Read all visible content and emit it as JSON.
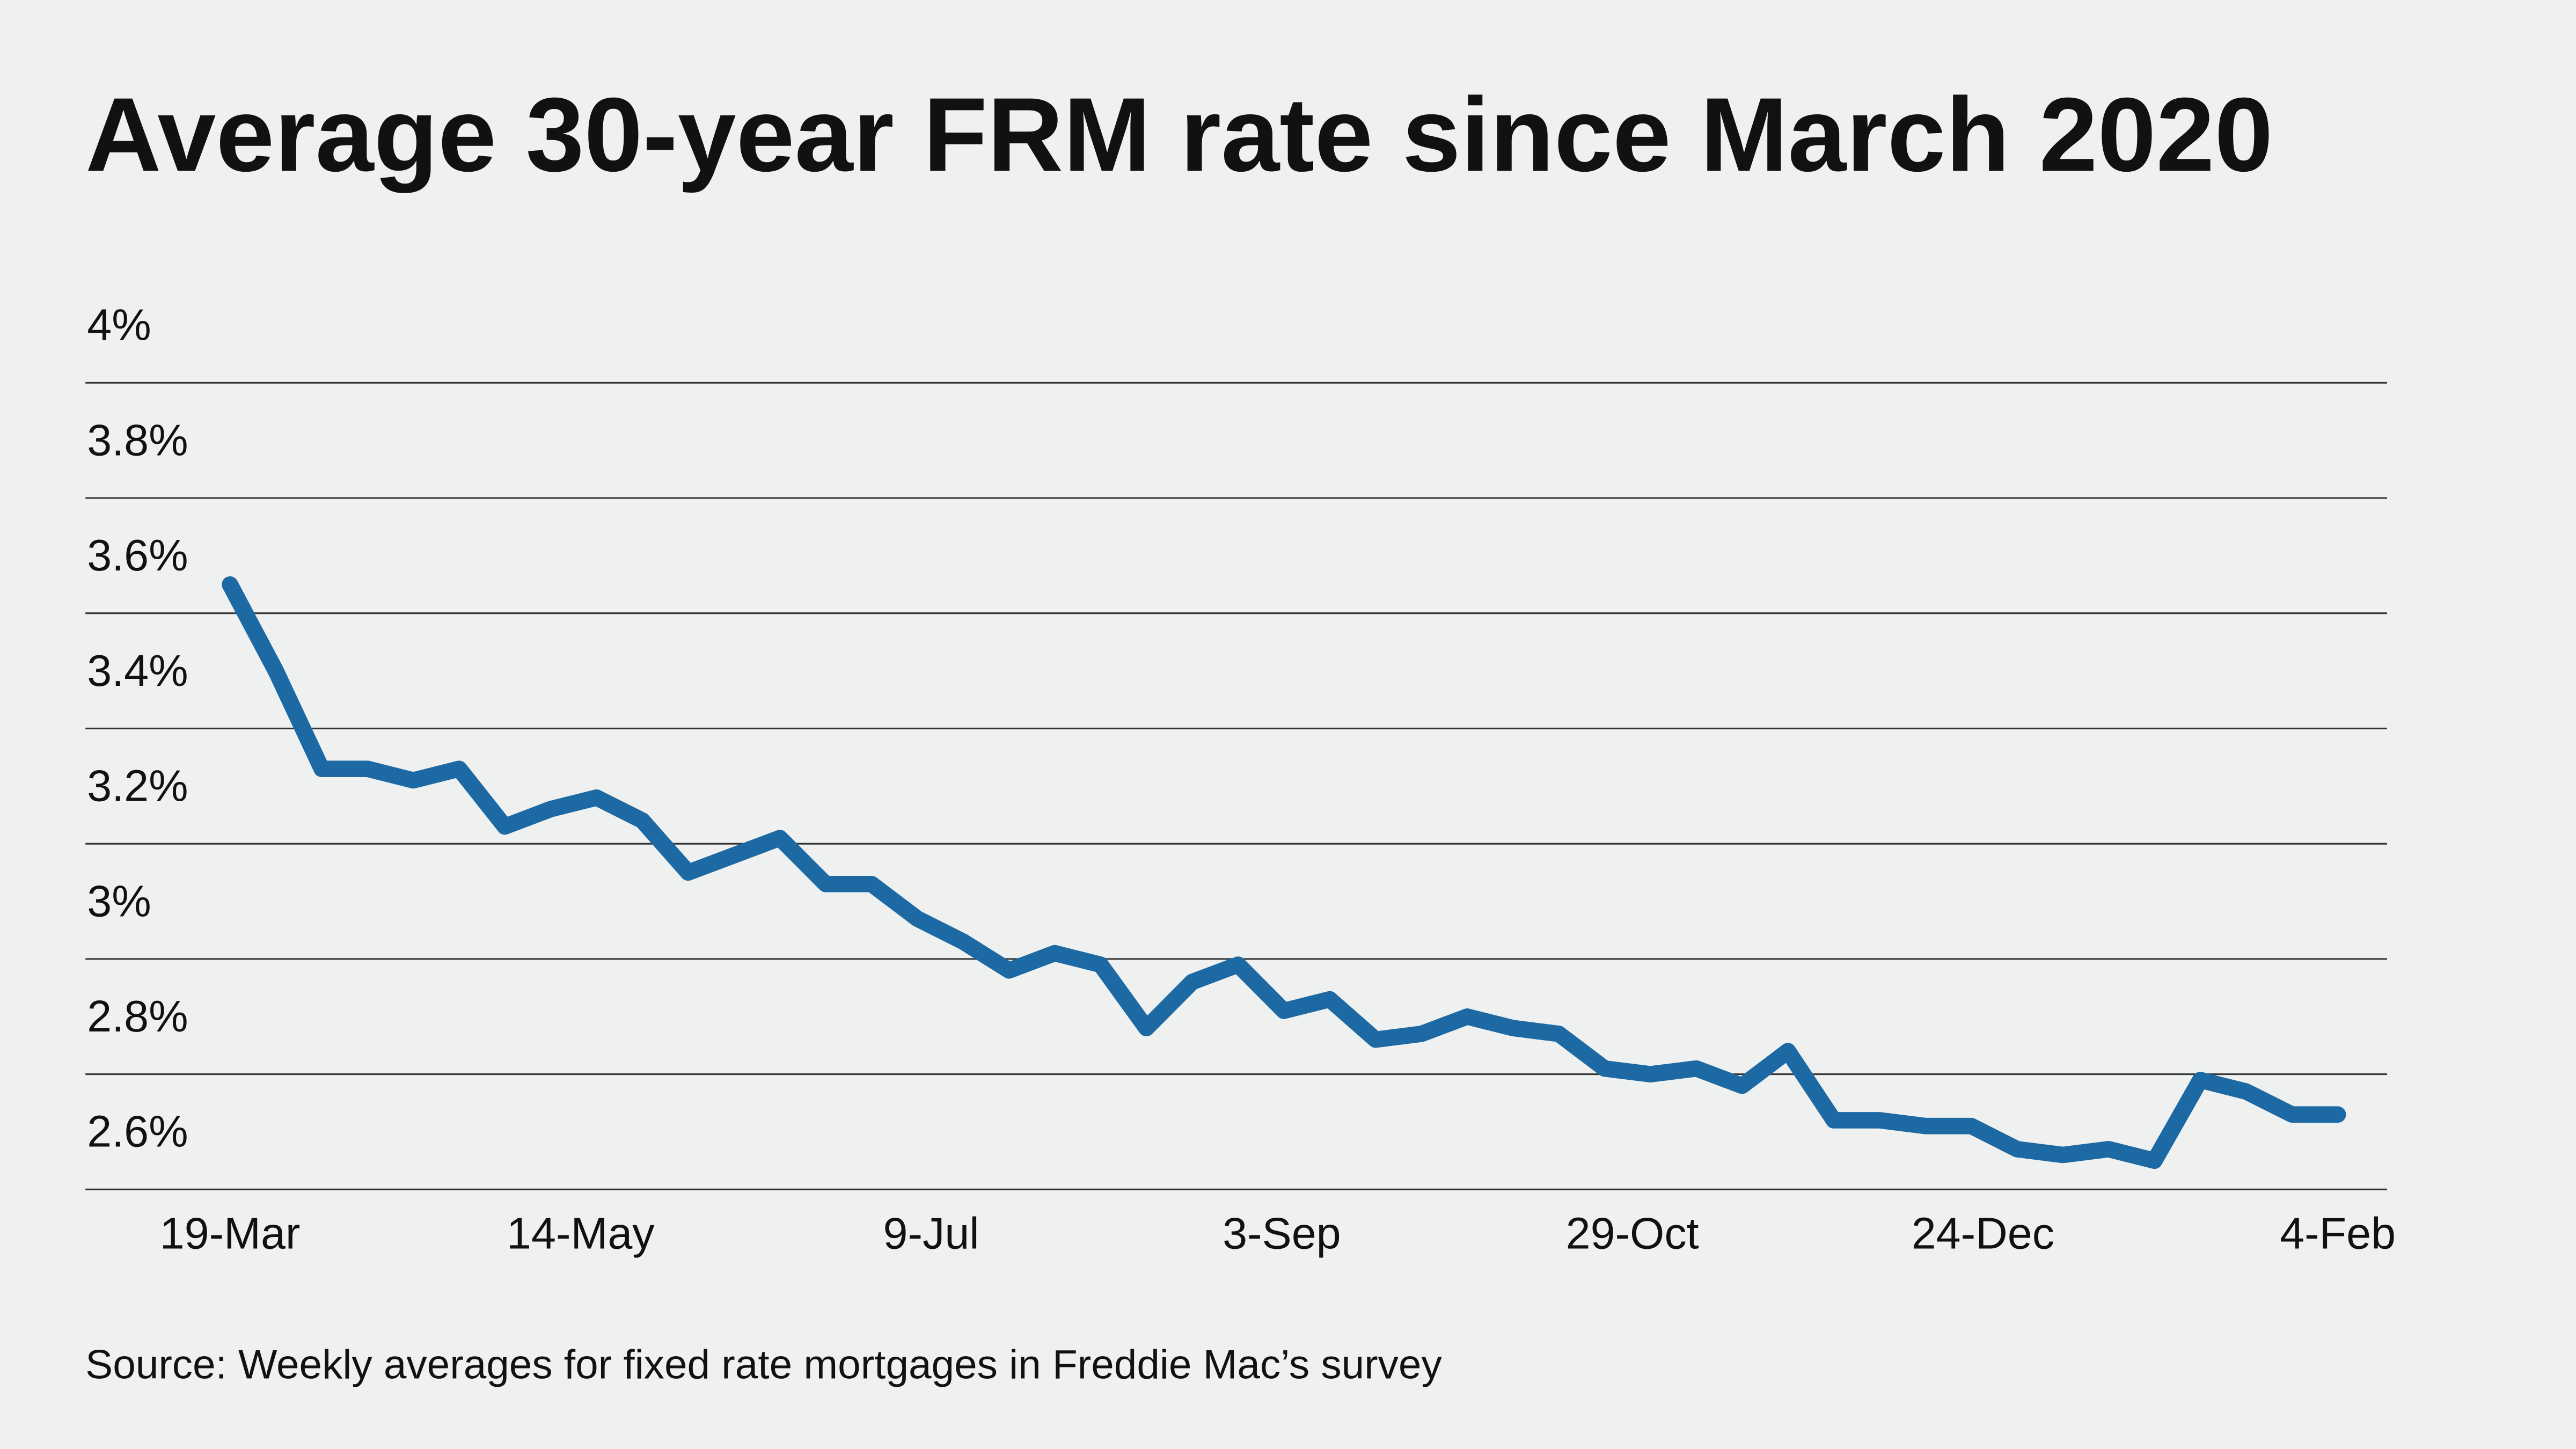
{
  "title": "Average 30-year FRM rate since March 2020",
  "source": "Source: Weekly averages for fixed rate mortgages in Freddie Mac’s survey",
  "colors": {
    "background": "#eff1f0",
    "line": "#1d69a3",
    "grid": "#333333"
  },
  "chart_data": {
    "type": "line",
    "title": "Average 30-year FRM rate since March 2020",
    "xlabel": "",
    "ylabel": "",
    "ylim": [
      2.6,
      4.0
    ],
    "yticks": [
      4.0,
      3.8,
      3.6,
      3.4,
      3.2,
      3.0,
      2.8,
      2.6
    ],
    "ytick_labels": [
      "4%",
      "3.8%",
      "3.6%",
      "3.4%",
      "3.2%",
      "3%",
      "2.8%",
      "2.6%"
    ],
    "xtick_labels": [
      {
        "label": "19-Mar",
        "index": 0
      },
      {
        "label": "14-May",
        "index": 8
      },
      {
        "label": "9-Jul",
        "index": 16
      },
      {
        "label": "3-Sep",
        "index": 24
      },
      {
        "label": "29-Oct",
        "index": 32
      },
      {
        "label": "24-Dec",
        "index": 40
      },
      {
        "label": "4-Feb",
        "index": 46
      }
    ],
    "grid": true,
    "series": [
      {
        "name": "30-year FRM",
        "values": [
          3.65,
          3.5,
          3.33,
          3.33,
          3.31,
          3.33,
          3.23,
          3.26,
          3.28,
          3.24,
          3.15,
          3.18,
          3.21,
          3.13,
          3.13,
          3.07,
          3.03,
          2.98,
          3.01,
          2.99,
          2.88,
          2.96,
          2.99,
          2.91,
          2.93,
          2.86,
          2.87,
          2.9,
          2.88,
          2.87,
          2.81,
          2.8,
          2.81,
          2.78,
          2.84,
          2.72,
          2.72,
          2.71,
          2.71,
          2.67,
          2.66,
          2.67,
          2.65,
          2.79,
          2.77,
          2.73,
          2.73
        ]
      }
    ]
  }
}
